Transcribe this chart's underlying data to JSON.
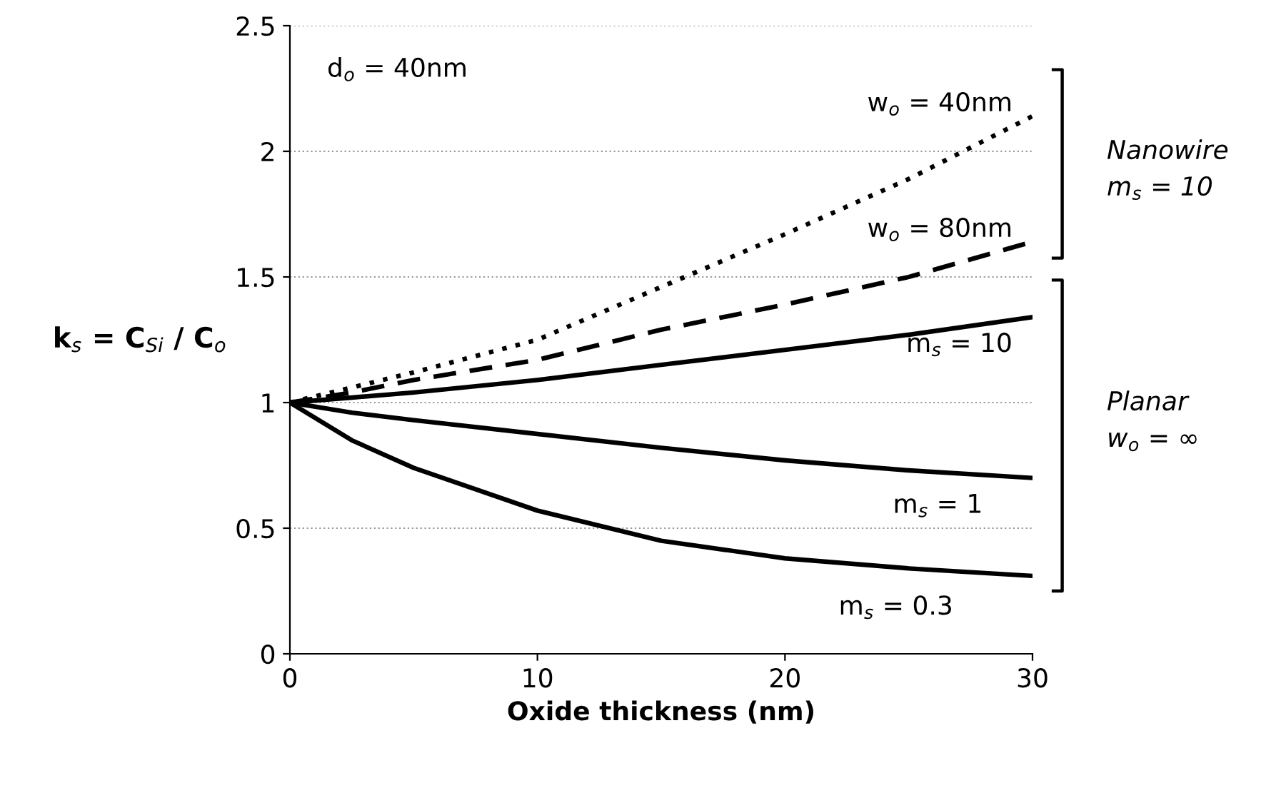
{
  "chart_data": {
    "type": "line",
    "xlabel": "Oxide thickness (nm)",
    "ylabel": "k$_{s}$ = C$_{Si}$ / C$_{o}$",
    "x": [
      0,
      2.5,
      5,
      10,
      15,
      20,
      25,
      30
    ],
    "series": [
      {
        "name": "w$_{o}$ = 40nm",
        "color": "#000000",
        "line_style": "dotted",
        "values": [
          1,
          1.06,
          1.12,
          1.25,
          1.46,
          1.67,
          1.89,
          2.14
        ]
      },
      {
        "name": "w$_{o}$ = 80nm",
        "color": "#000000",
        "line_style": "dashed",
        "values": [
          1,
          1.04,
          1.09,
          1.17,
          1.29,
          1.39,
          1.5,
          1.64
        ]
      },
      {
        "name": "m$_{s}$ = 10",
        "color": "#000000",
        "line_style": "solid",
        "values": [
          1,
          1.02,
          1.04,
          1.09,
          1.15,
          1.21,
          1.27,
          1.34
        ]
      },
      {
        "name": "m$_{s}$ = 1",
        "color": "#000000",
        "line_style": "solid",
        "values": [
          1,
          0.96,
          0.93,
          0.875,
          0.82,
          0.77,
          0.73,
          0.7
        ]
      },
      {
        "name": "m$_{s}$ = 0.3",
        "color": "#000000",
        "line_style": "solid",
        "values": [
          1,
          0.85,
          0.74,
          0.57,
          0.45,
          0.38,
          0.34,
          0.31
        ]
      }
    ],
    "annotations": [
      "d$_{o}$ = 40nm",
      "Nanowire\nm$_{s}$ = 10",
      "Planar\nw$_{o}$ = ∞"
    ],
    "xlim": [
      0,
      30
    ],
    "ylim": [
      0,
      2.5
    ],
    "xticks": [
      0,
      10,
      20,
      30
    ],
    "yticks": [
      0,
      0.5,
      1,
      1.5,
      2,
      2.5
    ],
    "grid": "y",
    "legend": false
  }
}
